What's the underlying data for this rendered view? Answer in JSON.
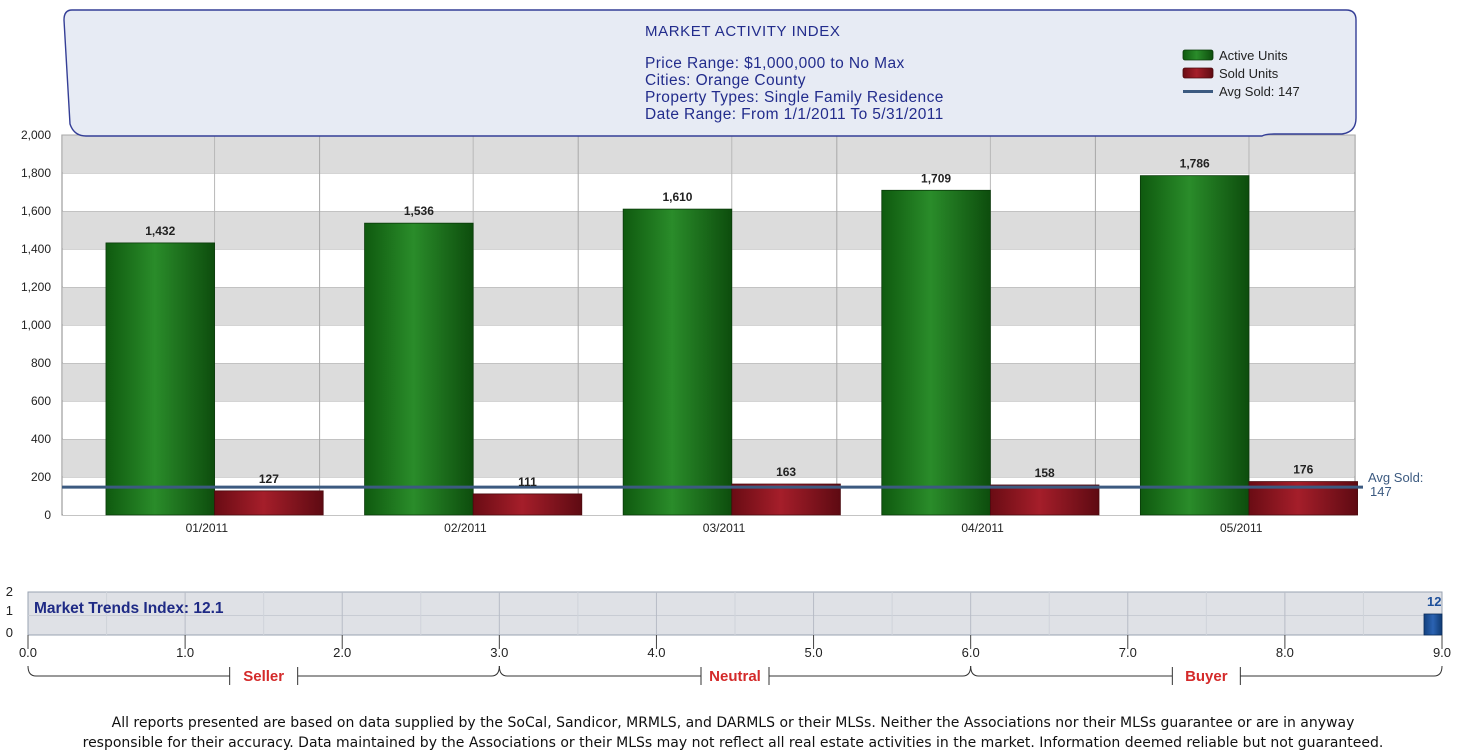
{
  "chart_data": [
    {
      "type": "bar",
      "title": "MARKET ACTIVITY INDEX",
      "info_lines": [
        "Price Range: $1,000,000 to No Max",
        "Cities: Orange County",
        "Property Types: Single Family Residence",
        "Date Range: From 1/1/2011 To 5/31/2011"
      ],
      "categories": [
        "01/2011",
        "02/2011",
        "03/2011",
        "04/2011",
        "05/2011"
      ],
      "series": [
        {
          "name": "Active Units",
          "color": "#1e7a1e",
          "values": [
            1432,
            1536,
            1610,
            1709,
            1786
          ],
          "labels": [
            "1,432",
            "1,536",
            "1,610",
            "1,709",
            "1,786"
          ]
        },
        {
          "name": "Sold Units",
          "color": "#8e1620",
          "values": [
            127,
            111,
            163,
            158,
            176
          ],
          "labels": [
            "127",
            "111",
            "163",
            "158",
            "176"
          ]
        }
      ],
      "reference_line": {
        "name": "Avg Sold",
        "value": 147,
        "color": "#3c5a80",
        "legend_label": "Avg Sold: 147",
        "label_line1": "Avg Sold:",
        "label_line2": "147"
      },
      "ylim": [
        0,
        2000
      ],
      "yticks": [
        0,
        200,
        400,
        600,
        800,
        1000,
        1200,
        1400,
        1600,
        1800,
        2000
      ],
      "ytick_labels": [
        "0",
        "200",
        "400",
        "600",
        "800",
        "1,000",
        "1,200",
        "1,400",
        "1,600",
        "1,800",
        "2,000"
      ],
      "xlabel": "",
      "ylabel": "",
      "legend_position": "top-right"
    },
    {
      "type": "bar",
      "title": "Market Trends Index: 12.1",
      "value": 12.1,
      "value_label": "12",
      "xlim": [
        0,
        9
      ],
      "xticks": [
        "0.0",
        "1.0",
        "2.0",
        "3.0",
        "4.0",
        "5.0",
        "6.0",
        "7.0",
        "8.0",
        "9.0"
      ],
      "yticks": [
        "2",
        "1",
        "0"
      ],
      "bar_color": "#1d4f9a",
      "zones": [
        {
          "label": "Seller",
          "from": 0,
          "to": 3
        },
        {
          "label": "Neutral",
          "from": 3,
          "to": 6
        },
        {
          "label": "Buyer",
          "from": 6,
          "to": 9
        }
      ],
      "zone_label_color": "#d42a2a"
    }
  ],
  "disclaimer": {
    "line1": "All reports presented are based on data supplied by the SoCal, Sandicor, MRMLS, and DARMLS or their MLSs. Neither the Associations nor their MLSs guarantee or are in anyway",
    "line2": "responsible for their accuracy. Data maintained by the Associations or their MLSs may not reflect all real estate activities in the market. Information deemed reliable but not guaranteed."
  }
}
